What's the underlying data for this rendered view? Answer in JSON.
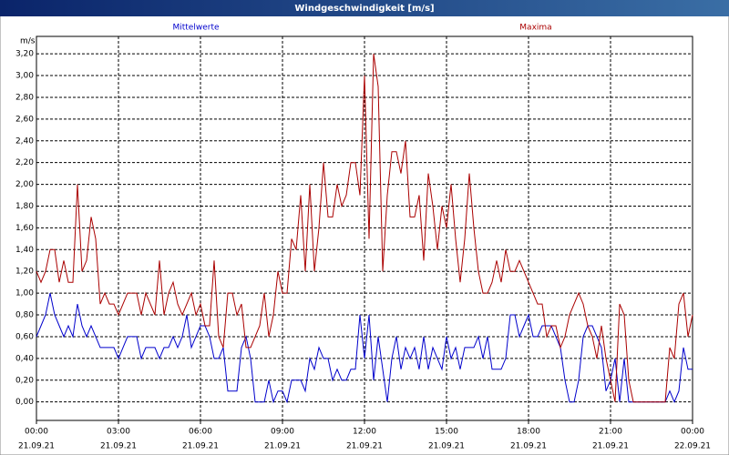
{
  "chart_data": {
    "type": "line",
    "title": "Windgeschwindigkeit [m/s]",
    "y_label": "m/s",
    "x": [
      0,
      10,
      20,
      30,
      40,
      50,
      60,
      70,
      80,
      90,
      100,
      110,
      120,
      130,
      140,
      150,
      160,
      170,
      180,
      190,
      200,
      210,
      220,
      230,
      240,
      250,
      260,
      270,
      280,
      290,
      300,
      310,
      320,
      330,
      340,
      350,
      360,
      370,
      380,
      390,
      400,
      410,
      420,
      430,
      440,
      450,
      460,
      470,
      480,
      490,
      500,
      510,
      520,
      530,
      540,
      550,
      560,
      570,
      580,
      590,
      600,
      610,
      620,
      630,
      640,
      650,
      660,
      670,
      680,
      690,
      700,
      710,
      720,
      730,
      740,
      750,
      760,
      770,
      780,
      790,
      800,
      810,
      820,
      830,
      840,
      850,
      860,
      870,
      880,
      890,
      900,
      910,
      920,
      930,
      940,
      950,
      960,
      970,
      980,
      990,
      1000,
      1010,
      1020,
      1030,
      1040,
      1050,
      1060,
      1070,
      1080,
      1090,
      1100,
      1110,
      1120,
      1130,
      1140,
      1150,
      1160,
      1170,
      1180,
      1190,
      1200,
      1210,
      1220,
      1230,
      1240,
      1250,
      1260,
      1270,
      1280,
      1290,
      1300,
      1310,
      1320,
      1330,
      1340,
      1350,
      1360,
      1370,
      1380,
      1390,
      1400,
      1410,
      1420,
      1430,
      1440
    ],
    "series": [
      {
        "name": "Mittelwerte",
        "color": "#0000cc",
        "values": [
          0.6,
          0.7,
          0.8,
          1.0,
          0.8,
          0.7,
          0.6,
          0.7,
          0.6,
          0.9,
          0.7,
          0.6,
          0.7,
          0.6,
          0.5,
          0.5,
          0.5,
          0.5,
          0.4,
          0.5,
          0.6,
          0.6,
          0.6,
          0.4,
          0.5,
          0.5,
          0.5,
          0.4,
          0.5,
          0.5,
          0.6,
          0.5,
          0.6,
          0.8,
          0.5,
          0.6,
          0.7,
          0.7,
          0.6,
          0.4,
          0.4,
          0.5,
          0.1,
          0.1,
          0.1,
          0.5,
          0.6,
          0.4,
          0.0,
          0.0,
          0.0,
          0.2,
          0.0,
          0.1,
          0.1,
          0.0,
          0.2,
          0.2,
          0.2,
          0.1,
          0.4,
          0.3,
          0.5,
          0.4,
          0.4,
          0.2,
          0.3,
          0.2,
          0.2,
          0.3,
          0.3,
          0.8,
          0.4,
          0.8,
          0.2,
          0.6,
          0.3,
          0.0,
          0.4,
          0.6,
          0.3,
          0.5,
          0.4,
          0.5,
          0.3,
          0.6,
          0.3,
          0.5,
          0.4,
          0.3,
          0.6,
          0.4,
          0.5,
          0.3,
          0.5,
          0.5,
          0.5,
          0.6,
          0.4,
          0.6,
          0.3,
          0.3,
          0.3,
          0.4,
          0.8,
          0.8,
          0.6,
          0.7,
          0.8,
          0.6,
          0.6,
          0.7,
          0.7,
          0.7,
          0.6,
          0.5,
          0.2,
          0.0,
          0.0,
          0.2,
          0.6,
          0.7,
          0.7,
          0.6,
          0.5,
          0.1,
          0.2,
          0.4,
          0.0,
          0.4,
          0.0,
          0.0,
          0.0,
          0.0,
          0.0,
          0.0,
          0.0,
          0.0,
          0.0,
          0.1,
          0.0,
          0.1,
          0.5,
          0.3,
          0.3
        ]
      },
      {
        "name": "Maxima",
        "color": "#aa0000",
        "values": [
          1.2,
          1.1,
          1.2,
          1.4,
          1.4,
          1.1,
          1.3,
          1.1,
          1.1,
          2.0,
          1.2,
          1.3,
          1.7,
          1.5,
          0.9,
          1.0,
          0.9,
          0.9,
          0.8,
          0.9,
          1.0,
          1.0,
          1.0,
          0.8,
          1.0,
          0.9,
          0.8,
          1.3,
          0.8,
          1.0,
          1.1,
          0.9,
          0.8,
          0.9,
          1.0,
          0.8,
          0.9,
          0.7,
          0.7,
          1.3,
          0.6,
          0.5,
          1.0,
          1.0,
          0.8,
          0.9,
          0.5,
          0.5,
          0.6,
          0.7,
          1.0,
          0.6,
          0.8,
          1.2,
          1.0,
          1.0,
          1.5,
          1.4,
          1.9,
          1.2,
          2.0,
          1.2,
          1.6,
          2.2,
          1.7,
          1.7,
          2.0,
          1.8,
          1.9,
          2.2,
          2.2,
          1.9,
          3.0,
          1.5,
          3.2,
          2.9,
          1.2,
          1.9,
          2.3,
          2.3,
          2.1,
          2.4,
          1.7,
          1.7,
          1.9,
          1.3,
          2.1,
          1.8,
          1.4,
          1.8,
          1.6,
          2.0,
          1.5,
          1.1,
          1.5,
          2.1,
          1.6,
          1.2,
          1.0,
          1.0,
          1.1,
          1.3,
          1.1,
          1.4,
          1.2,
          1.2,
          1.3,
          1.2,
          1.1,
          1.0,
          0.9,
          0.9,
          0.6,
          0.7,
          0.7,
          0.5,
          0.6,
          0.8,
          0.9,
          1.0,
          0.9,
          0.7,
          0.6,
          0.4,
          0.7,
          0.4,
          0.2,
          0.0,
          0.9,
          0.8,
          0.2,
          0.0,
          0.0,
          0.0,
          0.0,
          0.0,
          0.0,
          0.0,
          0.0,
          0.5,
          0.4,
          0.9,
          1.0,
          0.6,
          0.8
        ]
      }
    ],
    "xlim": [
      0,
      1440
    ],
    "xticks": [
      {
        "value": 0,
        "label": "00:00"
      },
      {
        "value": 180,
        "label": "03:00"
      },
      {
        "value": 360,
        "label": "06:00"
      },
      {
        "value": 540,
        "label": "09:00"
      },
      {
        "value": 720,
        "label": "12:00"
      },
      {
        "value": 900,
        "label": "15:00"
      },
      {
        "value": 1080,
        "label": "18:00"
      },
      {
        "value": 1260,
        "label": "21:00"
      },
      {
        "value": 1440,
        "label": "00:00"
      }
    ],
    "xtick_dates": [
      "21.09.21",
      "21.09.21",
      "21.09.21",
      "21.09.21",
      "21.09.21",
      "21.09.21",
      "21.09.21",
      "21.09.21",
      "22.09.21"
    ],
    "ylim": [
      -0.17,
      3.36
    ],
    "yticks": [
      {
        "value": 0,
        "label": "0,00"
      },
      {
        "value": 0.2,
        "label": "0,20"
      },
      {
        "value": 0.4,
        "label": "0,40"
      },
      {
        "value": 0.6,
        "label": "0,60"
      },
      {
        "value": 0.8,
        "label": "0,80"
      },
      {
        "value": 1.0,
        "label": "1,00"
      },
      {
        "value": 1.2,
        "label": "1,20"
      },
      {
        "value": 1.4,
        "label": "1,40"
      },
      {
        "value": 1.6,
        "label": "1,60"
      },
      {
        "value": 1.8,
        "label": "1,80"
      },
      {
        "value": 2.0,
        "label": "2,00"
      },
      {
        "value": 2.2,
        "label": "2,20"
      },
      {
        "value": 2.4,
        "label": "2,40"
      },
      {
        "value": 2.6,
        "label": "2,60"
      },
      {
        "value": 2.8,
        "label": "2,80"
      },
      {
        "value": 3.0,
        "label": "3,00"
      },
      {
        "value": 3.2,
        "label": "3,20"
      }
    ],
    "grid": true
  }
}
